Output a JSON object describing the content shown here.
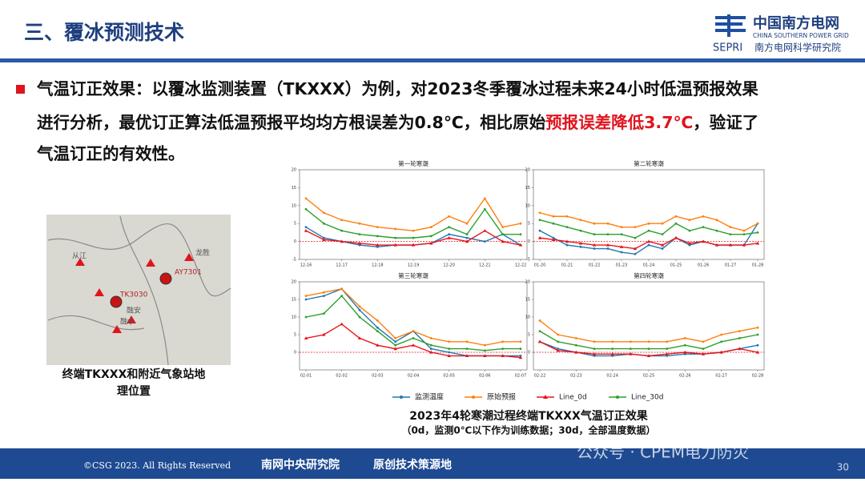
{
  "header": {
    "title": "三、覆冰预测技术",
    "logo_cn": "中国南方电网",
    "logo_en": "CHINA SOUTHERN POWER GRID",
    "logo_sub1": "SEPRI",
    "logo_sub2": "南方电网科学研究院"
  },
  "bullet": {
    "line1": "气温订正效果：以覆冰监测装置（TKXXX）为例，对2023冬季覆冰过程未来24小时低温预报效果",
    "line2": [
      "进行分析，最优订正算法低温预报平均均方根误差为0.8℃，相比原始",
      "预报误差降低3.7℃",
      "，验证了"
    ],
    "line3": "气温订正的有效性。"
  },
  "map": {
    "labels": [
      "从江",
      "TK3030",
      "AY7301",
      "龙胜",
      "融安",
      "融水"
    ],
    "caption": [
      "终端TKXXX和附近气象站地",
      "理位置"
    ]
  },
  "legend": [
    {
      "name": "监测温度",
      "color": "#1f77b4"
    },
    {
      "name": "原始预报",
      "color": "#ff7f0e"
    },
    {
      "name": "Line_0d",
      "color": "#e8141c"
    },
    {
      "name": "Line_30d",
      "color": "#2ca02c"
    }
  ],
  "chart_data": [
    {
      "type": "line",
      "title": "第一轮寒潮",
      "ylim": [
        -5,
        20
      ],
      "yticks": [
        -5,
        0,
        5,
        10,
        15,
        20
      ],
      "hline": 0,
      "categories": [
        "12-16",
        null,
        "12-17",
        null,
        "12-18",
        null,
        "12-19",
        null,
        "12-20",
        null,
        "12-21",
        null,
        "12-22"
      ],
      "series": [
        {
          "values": [
            4,
            1,
            0,
            -1,
            -1.5,
            -1,
            -1,
            -0.5,
            2,
            1,
            0,
            2,
            -1
          ]
        },
        {
          "values": [
            12,
            8,
            6,
            5,
            4,
            3.5,
            3,
            4,
            7,
            5,
            12,
            4,
            5
          ]
        },
        {
          "values": [
            3,
            0.5,
            0,
            -0.5,
            -1,
            -1,
            -1,
            -0.5,
            1,
            0,
            3,
            0,
            -1
          ]
        },
        {
          "values": [
            9,
            5,
            3,
            2,
            1.5,
            1,
            1,
            1.5,
            4,
            2,
            9,
            2,
            2
          ]
        }
      ]
    },
    {
      "type": "line",
      "title": "第二轮寒潮",
      "ylim": [
        -5,
        20
      ],
      "yticks": [
        -5,
        0,
        5,
        10,
        15,
        20
      ],
      "hline": 0,
      "categories": [
        "01-20",
        null,
        "01-21",
        null,
        "01-22",
        null,
        "01-23",
        null,
        "01-24",
        null,
        "01-25",
        null,
        "01-26",
        null,
        "01-27",
        null,
        "01-28"
      ],
      "series": [
        {
          "values": [
            3,
            1,
            -1,
            -1.5,
            -2,
            -2,
            -3,
            -3.5,
            -1,
            -2,
            1,
            -1,
            0,
            -1,
            -1,
            -1,
            5
          ]
        },
        {
          "values": [
            8,
            7,
            7,
            6,
            5,
            5,
            4,
            4,
            5,
            5,
            7,
            6,
            7,
            6,
            4,
            3,
            5
          ]
        },
        {
          "values": [
            1,
            0.5,
            0,
            -0.5,
            -1,
            -1,
            -1.5,
            -2,
            0,
            -1,
            1,
            -0.5,
            0,
            -1,
            -1,
            -1,
            -0.5
          ]
        },
        {
          "values": [
            6,
            5,
            4,
            3,
            2,
            2,
            2,
            1,
            3,
            2,
            5,
            3,
            4,
            3,
            2,
            2,
            2.5
          ]
        }
      ]
    },
    {
      "type": "line",
      "title": "第三轮寒潮",
      "ylim": [
        -5,
        20
      ],
      "yticks": [
        0,
        5,
        10,
        15,
        20
      ],
      "hline": 0,
      "categories": [
        "02-01",
        null,
        "02-02",
        null,
        "02-03",
        null,
        "02-04",
        null,
        "02-05",
        null,
        "02-06",
        null,
        "02-07"
      ],
      "series": [
        {
          "values": [
            15,
            16,
            18,
            12,
            7,
            3,
            6,
            1,
            0,
            -1,
            -1,
            -1,
            -1
          ]
        },
        {
          "values": [
            16,
            17,
            18,
            13,
            9,
            4,
            6,
            4,
            3,
            3,
            2,
            3,
            3
          ]
        },
        {
          "values": [
            4,
            5,
            8,
            4,
            2,
            1,
            2,
            0,
            -1,
            -1,
            -1,
            -1,
            -1.5
          ]
        },
        {
          "values": [
            10,
            11,
            16,
            10,
            6,
            2,
            4,
            2,
            1,
            1,
            0.5,
            1,
            1
          ]
        }
      ]
    },
    {
      "type": "line",
      "title": "第四轮寒潮",
      "ylim": [
        -5,
        20
      ],
      "yticks": [
        0,
        5,
        10,
        15,
        20
      ],
      "hline": 0,
      "categories": [
        "02-22",
        null,
        "02-23",
        null,
        "02-24",
        null,
        "02-25",
        null,
        "02-26",
        null,
        "02-27",
        null,
        "02-28"
      ],
      "series": [
        {
          "values": [
            3,
            1,
            0,
            -1,
            -1,
            -0.5,
            -1,
            -1,
            -0.5,
            -0.5,
            0,
            1,
            2
          ]
        },
        {
          "values": [
            9,
            5,
            4,
            3,
            3,
            3,
            3,
            3,
            4,
            3,
            5,
            6,
            7
          ]
        },
        {
          "values": [
            3,
            0.5,
            0,
            -0.5,
            -0.5,
            -0.5,
            -1,
            -0.5,
            0,
            -0.5,
            0,
            1,
            0
          ]
        },
        {
          "values": [
            6,
            3,
            2,
            1,
            1,
            1,
            1,
            1,
            2,
            1,
            3,
            4,
            5
          ]
        }
      ]
    }
  ],
  "caption": {
    "line1": "2023年4轮寒潮过程终端TKXXX气温订正效果",
    "line2": "（0d，监测0℃以下作为训练数据；30d，全部温度数据）"
  },
  "watermark": "公众号 · CPEM电力防灾",
  "footer": {
    "copyright": "©CSG 2023. All Rights Reserved",
    "left": "南网中央研究院",
    "right": "原创技术策源地",
    "page": "30"
  }
}
